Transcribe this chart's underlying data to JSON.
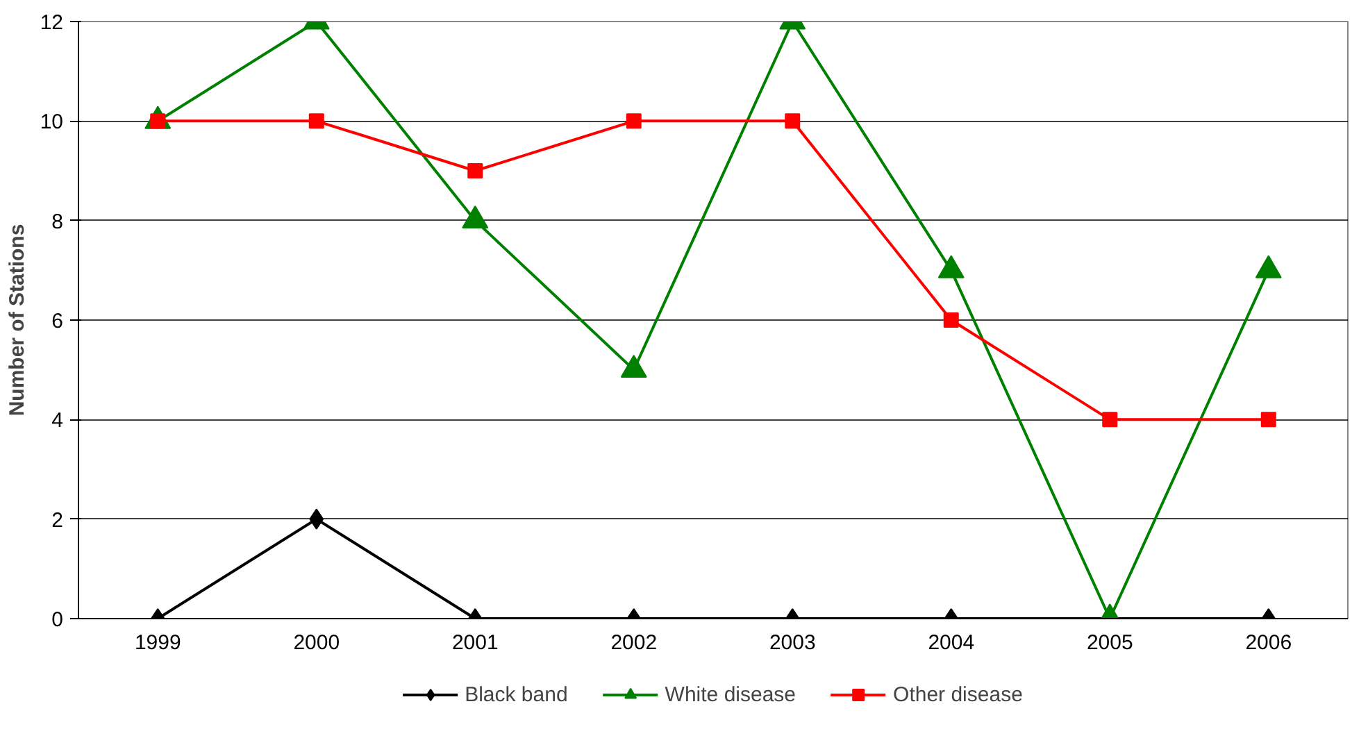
{
  "chart_data": {
    "type": "line",
    "ylabel": "Number of Stations",
    "categories": [
      "1999",
      "2000",
      "2001",
      "2002",
      "2003",
      "2004",
      "2005",
      "2006"
    ],
    "series": [
      {
        "name": "Black band",
        "color": "#000000",
        "marker": "diamond",
        "values": [
          0,
          2,
          0,
          0,
          0,
          0,
          0,
          0
        ]
      },
      {
        "name": "White disease",
        "color": "#008000",
        "marker": "triangle",
        "values": [
          10,
          12,
          8,
          5,
          12,
          7,
          0,
          7
        ]
      },
      {
        "name": "Other disease",
        "color": "#ff0000",
        "marker": "square",
        "values": [
          10,
          10,
          9,
          10,
          10,
          6,
          4,
          4
        ]
      }
    ],
    "ylim": [
      0,
      12
    ],
    "yticks": [
      0,
      2,
      4,
      6,
      8,
      10,
      12
    ],
    "grid": "y",
    "legend": "bottom",
    "line_style": "solid"
  }
}
